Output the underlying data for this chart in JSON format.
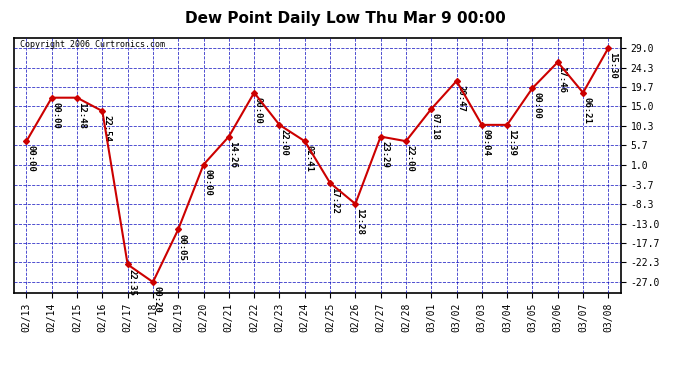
{
  "title": "Dew Point Daily Low Thu Mar 9 00:00",
  "copyright": "Copyright 2006 Curtronics.com",
  "background_color": "#ffffff",
  "plot_bg_color": "#ffffff",
  "grid_color": "#0000bb",
  "line_color": "#cc0000",
  "marker_color": "#cc0000",
  "dates": [
    "02/13",
    "02/14",
    "02/15",
    "02/16",
    "02/17",
    "02/18",
    "02/19",
    "02/20",
    "02/21",
    "02/22",
    "02/23",
    "02/24",
    "02/25",
    "02/26",
    "02/27",
    "02/28",
    "03/01",
    "03/02",
    "03/03",
    "03/04",
    "03/05",
    "03/06",
    "03/07",
    "03/08"
  ],
  "values": [
    6.7,
    17.1,
    17.1,
    13.9,
    -22.8,
    -27.0,
    -14.4,
    1.1,
    7.8,
    18.3,
    10.6,
    6.7,
    -3.3,
    -8.3,
    7.8,
    6.7,
    14.4,
    21.1,
    10.6,
    10.6,
    19.4,
    25.6,
    18.3,
    29.0
  ],
  "annotations": [
    "00:00",
    "00:00",
    "12:48",
    "22:54",
    "22:35",
    "00:20",
    "00:05",
    "00:00",
    "14:26",
    "00:00",
    "22:00",
    "02:41",
    "17:22",
    "12:28",
    "23:29",
    "22:00",
    "07:18",
    "20:47",
    "09:04",
    "12:39",
    "00:00",
    "17:46",
    "06:21",
    "15:30"
  ],
  "yticks": [
    29.0,
    24.3,
    19.7,
    15.0,
    10.3,
    5.7,
    1.0,
    -3.7,
    -8.3,
    -13.0,
    -17.7,
    -22.3,
    -27.0
  ],
  "ylim": [
    -29.5,
    31.5
  ],
  "title_fontsize": 11,
  "axis_fontsize": 7,
  "annotation_fontsize": 6.5
}
